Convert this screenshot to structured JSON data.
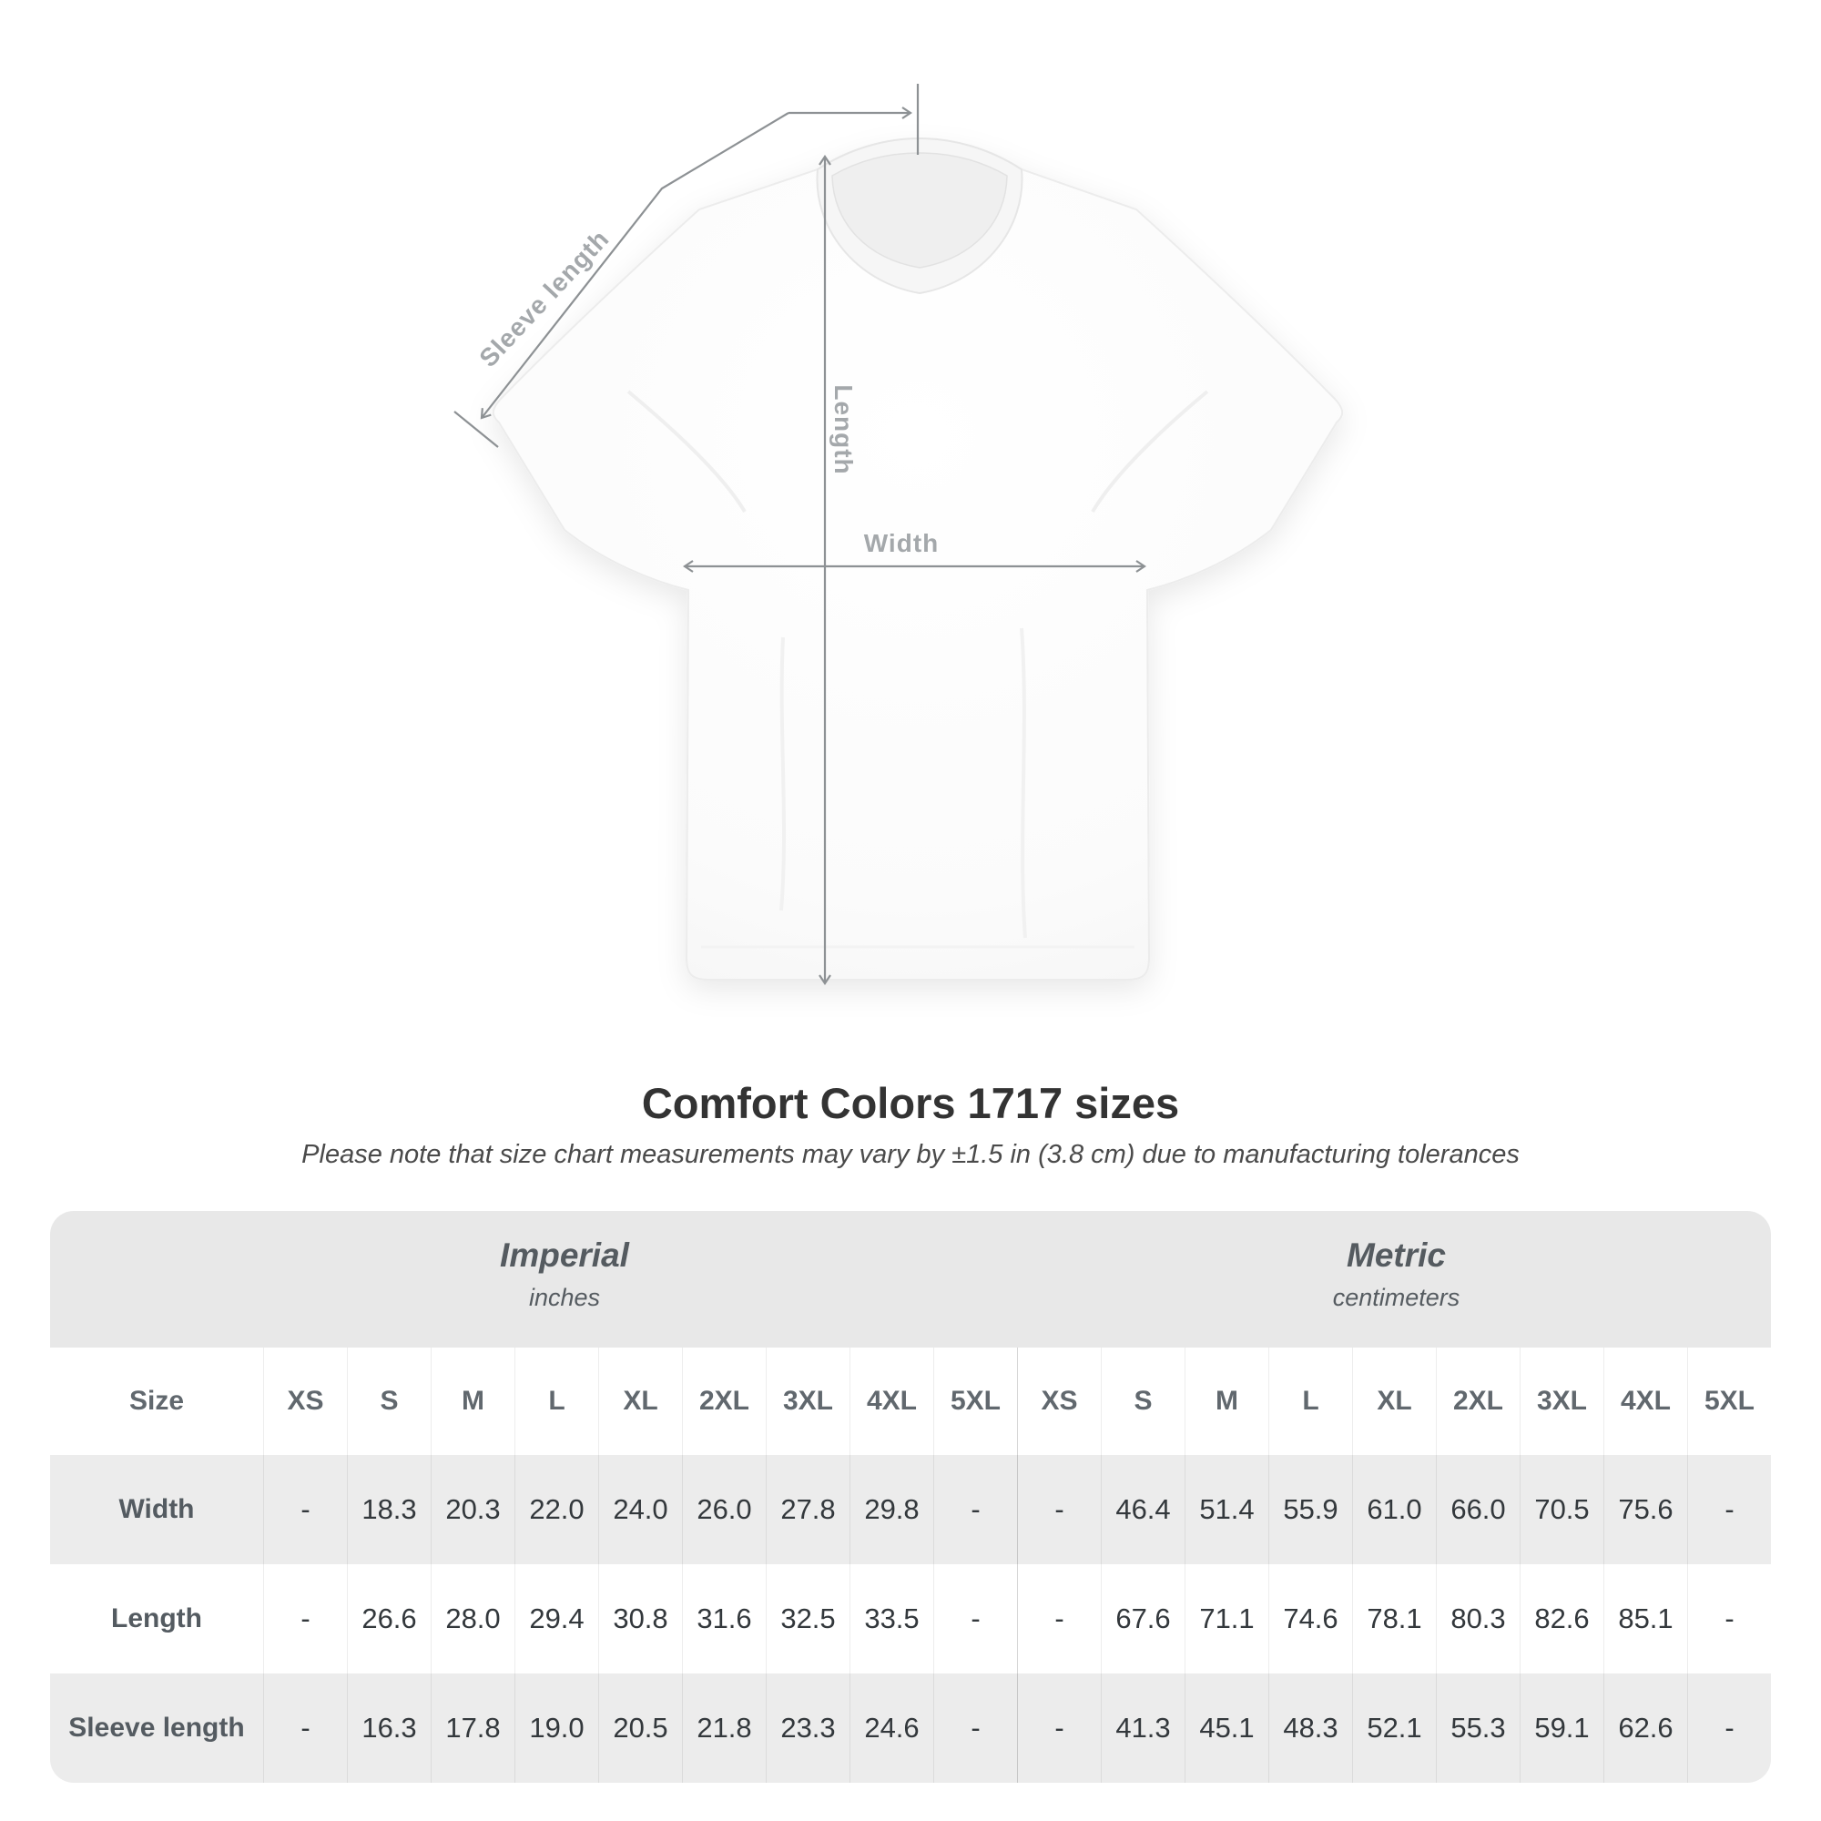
{
  "diagram": {
    "sleeve_length_label": "Sleeve length",
    "length_label": "Length",
    "width_label": "Width",
    "line_color": "#8d9194",
    "label_color": "#a4a8ab"
  },
  "heading": {
    "title": "Comfort Colors 1717 sizes",
    "subtitle": "Please note that size chart measurements may vary by ±1.5 in (3.8 cm) due to manufacturing tolerances"
  },
  "table": {
    "corner_label": "Size",
    "unit_sections": [
      {
        "name": "Imperial",
        "unit": "inches"
      },
      {
        "name": "Metric",
        "unit": "centimeters"
      }
    ],
    "size_columns": [
      "XS",
      "S",
      "M",
      "L",
      "XL",
      "2XL",
      "3XL",
      "4XL",
      "5XL"
    ],
    "rows": [
      {
        "label": "Width",
        "imperial": [
          "-",
          "18.3",
          "20.3",
          "22.0",
          "24.0",
          "26.0",
          "27.8",
          "29.8",
          "-"
        ],
        "metric": [
          "-",
          "46.4",
          "51.4",
          "55.9",
          "61.0",
          "66.0",
          "70.5",
          "75.6",
          "-"
        ]
      },
      {
        "label": "Length",
        "imperial": [
          "-",
          "26.6",
          "28.0",
          "29.4",
          "30.8",
          "31.6",
          "32.5",
          "33.5",
          "-"
        ],
        "metric": [
          "-",
          "67.6",
          "71.1",
          "74.6",
          "78.1",
          "80.3",
          "82.6",
          "85.1",
          "-"
        ]
      },
      {
        "label": "Sleeve length",
        "imperial": [
          "-",
          "16.3",
          "17.8",
          "19.0",
          "20.5",
          "21.8",
          "23.3",
          "24.6",
          "-"
        ],
        "metric": [
          "-",
          "41.3",
          "45.1",
          "48.3",
          "52.1",
          "55.3",
          "59.1",
          "62.6",
          "-"
        ]
      }
    ],
    "colors": {
      "band_bg": "#e8e8e8",
      "stripe_bg": "#ececec",
      "value_text": "#33383c",
      "label_text": "#545b61"
    }
  }
}
